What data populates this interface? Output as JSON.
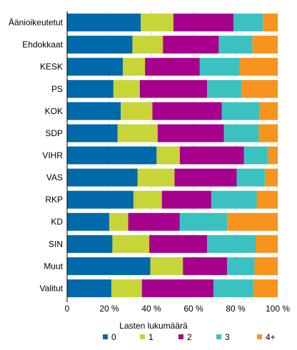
{
  "chart_data": {
    "type": "bar",
    "orientation": "horizontal",
    "stacked": true,
    "percent_stacked": true,
    "title": "",
    "xlabel": "",
    "ylabel": "",
    "xlim": [
      0,
      100
    ],
    "x_ticks": [
      0,
      20,
      40,
      60,
      80,
      100
    ],
    "x_tick_labels": [
      "0",
      "20 %",
      "40 %",
      "60 %",
      "80 %",
      "100 %"
    ],
    "grid": "vertical-dashed",
    "legend": {
      "title": "Lasten lukumäärä",
      "placement": "bottom"
    },
    "categories": [
      "Äänioikeutetut",
      "Ehdokkaat",
      "KESK",
      "PS",
      "KOK",
      "SDP",
      "VIHR",
      "VAS",
      "RKP",
      "KD",
      "SIN",
      "Muut",
      "Valitut"
    ],
    "series": [
      {
        "name": "0",
        "color": "#0069aa",
        "values": [
          35,
          31,
          26.5,
          22,
          25.5,
          24,
          42.5,
          33.5,
          31.5,
          20,
          21.5,
          39.5,
          21
        ]
      },
      {
        "name": "1",
        "color": "#c7d539",
        "values": [
          15.5,
          14.5,
          10.5,
          12.5,
          15,
          19,
          11,
          17.5,
          13.5,
          9,
          17.5,
          15.5,
          14.5
        ]
      },
      {
        "name": "2",
        "color": "#a6008c",
        "values": [
          28.5,
          26.5,
          26,
          32,
          33,
          31.5,
          30.5,
          29.5,
          23.5,
          24.5,
          27.5,
          21,
          34
        ]
      },
      {
        "name": "3",
        "color": "#3bc2c0",
        "values": [
          14,
          16,
          19,
          16.5,
          18,
          16.5,
          11.5,
          13.5,
          21.5,
          22.5,
          23,
          13,
          19
        ]
      },
      {
        "name": "4+",
        "color": "#f7941d",
        "values": [
          7,
          12,
          18,
          17,
          8.5,
          9,
          4.5,
          6,
          10,
          24,
          10.5,
          11,
          11.5
        ]
      }
    ]
  }
}
